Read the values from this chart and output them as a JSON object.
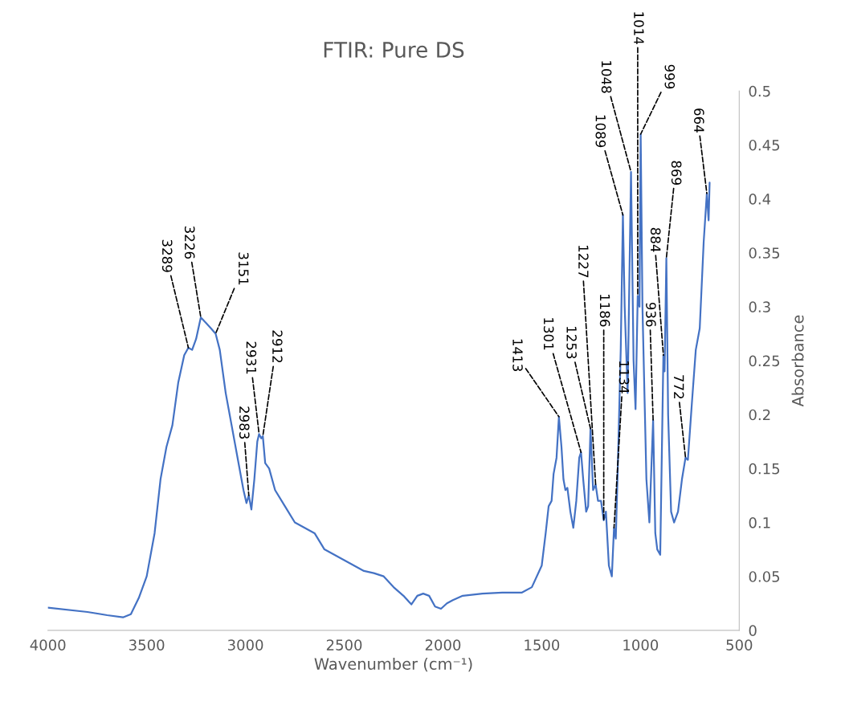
{
  "chart_data": {
    "type": "line",
    "title": "FTIR: Pure DS",
    "xlabel": "Wavenumber (cm⁻¹)",
    "ylabel": "Absorbance",
    "xlim": [
      4000,
      500
    ],
    "xticks": [
      4000,
      3500,
      3000,
      2500,
      2000,
      1500,
      1000,
      500
    ],
    "ylim": [
      0,
      0.5
    ],
    "yticks": [
      0,
      0.05,
      0.1,
      0.15,
      0.2,
      0.25,
      0.3,
      0.35,
      0.4,
      0.45,
      0.5
    ],
    "grid": false,
    "legend": false,
    "marker": "none",
    "line_style": "solid",
    "x": [
      4000,
      3800,
      3700,
      3620,
      3580,
      3540,
      3500,
      3460,
      3430,
      3400,
      3370,
      3340,
      3310,
      3289,
      3270,
      3250,
      3226,
      3200,
      3175,
      3151,
      3130,
      3100,
      3070,
      3040,
      3010,
      2995,
      2983,
      2970,
      2955,
      2940,
      2931,
      2920,
      2912,
      2900,
      2880,
      2850,
      2800,
      2750,
      2700,
      2650,
      2600,
      2500,
      2400,
      2350,
      2300,
      2250,
      2200,
      2160,
      2130,
      2100,
      2070,
      2040,
      2010,
      1980,
      1950,
      1900,
      1800,
      1700,
      1600,
      1550,
      1500,
      1480,
      1465,
      1450,
      1440,
      1425,
      1413,
      1400,
      1390,
      1380,
      1370,
      1355,
      1340,
      1325,
      1310,
      1301,
      1290,
      1275,
      1265,
      1253,
      1240,
      1227,
      1215,
      1200,
      1186,
      1175,
      1160,
      1145,
      1134,
      1125,
      1115,
      1100,
      1089,
      1080,
      1065,
      1048,
      1035,
      1025,
      1014,
      1005,
      999,
      990,
      970,
      955,
      936,
      925,
      915,
      900,
      884,
      878,
      869,
      860,
      845,
      830,
      810,
      790,
      772,
      760,
      740,
      720,
      700,
      680,
      664,
      655,
      650
    ],
    "series": [
      {
        "color": "#4472c4",
        "values": [
          0.021,
          0.017,
          0.014,
          0.012,
          0.015,
          0.03,
          0.05,
          0.09,
          0.14,
          0.17,
          0.19,
          0.23,
          0.255,
          0.262,
          0.26,
          0.27,
          0.29,
          0.285,
          0.28,
          0.275,
          0.26,
          0.22,
          0.19,
          0.16,
          0.13,
          0.118,
          0.125,
          0.112,
          0.14,
          0.175,
          0.182,
          0.178,
          0.18,
          0.155,
          0.15,
          0.13,
          0.115,
          0.1,
          0.095,
          0.09,
          0.075,
          0.065,
          0.055,
          0.053,
          0.05,
          0.04,
          0.032,
          0.024,
          0.032,
          0.034,
          0.032,
          0.022,
          0.02,
          0.025,
          0.028,
          0.032,
          0.034,
          0.035,
          0.035,
          0.04,
          0.06,
          0.09,
          0.115,
          0.12,
          0.145,
          0.16,
          0.198,
          0.17,
          0.14,
          0.13,
          0.132,
          0.11,
          0.095,
          0.12,
          0.16,
          0.165,
          0.14,
          0.11,
          0.115,
          0.187,
          0.13,
          0.135,
          0.12,
          0.12,
          0.102,
          0.11,
          0.06,
          0.05,
          0.095,
          0.085,
          0.15,
          0.26,
          0.385,
          0.3,
          0.22,
          0.425,
          0.25,
          0.205,
          0.31,
          0.3,
          0.46,
          0.3,
          0.14,
          0.1,
          0.195,
          0.09,
          0.075,
          0.07,
          0.255,
          0.24,
          0.345,
          0.2,
          0.11,
          0.1,
          0.11,
          0.14,
          0.16,
          0.158,
          0.21,
          0.26,
          0.28,
          0.36,
          0.405,
          0.38,
          0.415
        ]
      }
    ],
    "annotations": [
      {
        "text": "3289",
        "x": 3289,
        "y": 0.262
      },
      {
        "text": "3226",
        "x": 3226,
        "y": 0.29
      },
      {
        "text": "3151",
        "x": 3151,
        "y": 0.275
      },
      {
        "text": "2983",
        "x": 2983,
        "y": 0.125
      },
      {
        "text": "2931",
        "x": 2931,
        "y": 0.182
      },
      {
        "text": "2912",
        "x": 2912,
        "y": 0.18
      },
      {
        "text": "1413",
        "x": 1413,
        "y": 0.198
      },
      {
        "text": "1301",
        "x": 1301,
        "y": 0.165
      },
      {
        "text": "1253",
        "x": 1253,
        "y": 0.187
      },
      {
        "text": "1227",
        "x": 1227,
        "y": 0.135
      },
      {
        "text": "1186",
        "x": 1186,
        "y": 0.102
      },
      {
        "text": "1134",
        "x": 1134,
        "y": 0.095
      },
      {
        "text": "1089",
        "x": 1089,
        "y": 0.385
      },
      {
        "text": "1048",
        "x": 1048,
        "y": 0.425
      },
      {
        "text": "1014",
        "x": 1014,
        "y": 0.31
      },
      {
        "text": "999",
        "x": 999,
        "y": 0.46
      },
      {
        "text": "936",
        "x": 936,
        "y": 0.195
      },
      {
        "text": "884",
        "x": 884,
        "y": 0.255
      },
      {
        "text": "869",
        "x": 869,
        "y": 0.345
      },
      {
        "text": "772",
        "x": 772,
        "y": 0.16
      },
      {
        "text": "664",
        "x": 664,
        "y": 0.405
      }
    ]
  }
}
